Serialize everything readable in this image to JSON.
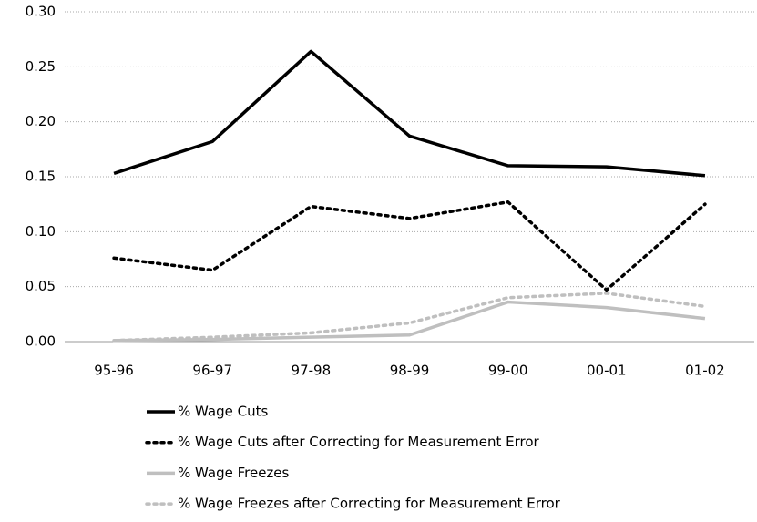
{
  "chart_data": {
    "type": "line",
    "categories": [
      "95-96",
      "96-97",
      "97-98",
      "98-99",
      "99-00",
      "00-01",
      "01-02"
    ],
    "series": [
      {
        "name": "% Wage Cuts",
        "color": "#000000",
        "style": "solid",
        "values": [
          0.153,
          0.182,
          0.264,
          0.187,
          0.16,
          0.159,
          0.151
        ]
      },
      {
        "name": "% Wage Cuts after Correcting for Measurement Error",
        "color": "#000000",
        "style": "dotted",
        "values": [
          0.076,
          0.065,
          0.123,
          0.112,
          0.127,
          0.047,
          0.125
        ]
      },
      {
        "name": "% Wage Freezes",
        "color": "#bfbfbf",
        "style": "solid",
        "values": [
          0.001,
          0.002,
          0.004,
          0.006,
          0.036,
          0.031,
          0.021
        ]
      },
      {
        "name": "% Wage Freezes after Correcting for Measurement Error",
        "color": "#bfbfbf",
        "style": "dotted",
        "values": [
          0.001,
          0.004,
          0.008,
          0.017,
          0.04,
          0.044,
          0.032
        ]
      }
    ],
    "ylim": [
      0,
      0.3
    ],
    "yticks": [
      {
        "value": 0,
        "label": "0.00"
      },
      {
        "value": 0.05,
        "label": "0.05"
      },
      {
        "value": 0.1,
        "label": "0.10"
      },
      {
        "value": 0.15,
        "label": "0.15"
      },
      {
        "value": 0.2,
        "label": "0.20"
      },
      {
        "value": 0.25,
        "label": "0.25"
      },
      {
        "value": 0.3,
        "label": "0.30"
      }
    ],
    "grid": true,
    "legend": "bottom"
  }
}
